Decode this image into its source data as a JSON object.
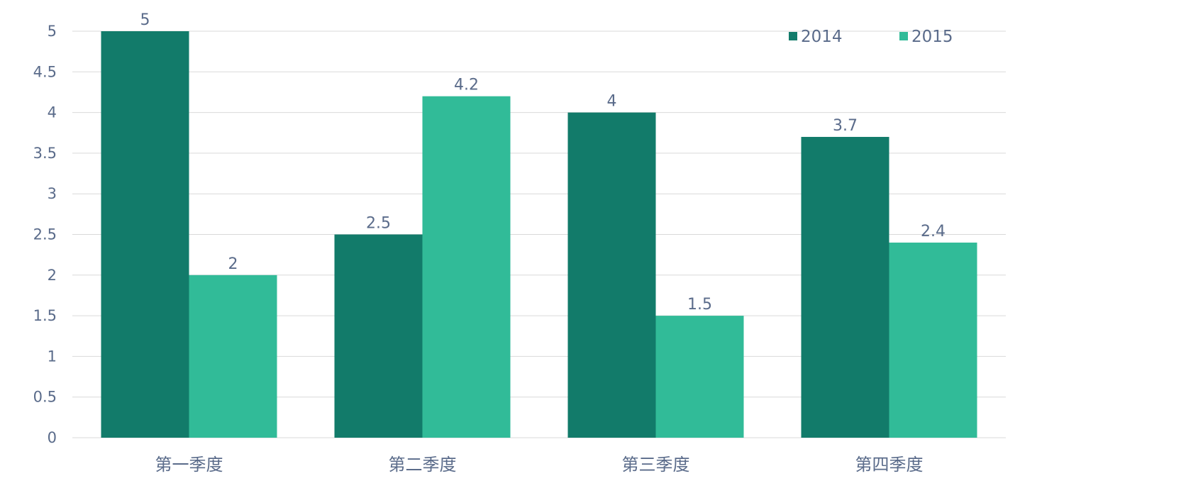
{
  "chart_data": {
    "type": "bar",
    "title": "",
    "xlabel": "",
    "ylabel": "",
    "categories": [
      "第一季度",
      "第二季度",
      "第三季度",
      "第四季度"
    ],
    "series": [
      {
        "name": "2014",
        "color": "#127b6a",
        "values": [
          5,
          2.5,
          4,
          3.7
        ]
      },
      {
        "name": "2015",
        "color": "#31bb98",
        "values": [
          2,
          4.2,
          1.5,
          2.4
        ]
      }
    ],
    "ylim": [
      0,
      5
    ],
    "yticks": [
      0,
      0.5,
      1,
      1.5,
      2,
      2.5,
      3,
      3.5,
      4,
      4.5,
      5
    ],
    "data_labels": true,
    "grid": true,
    "legend_position": "top-right"
  }
}
